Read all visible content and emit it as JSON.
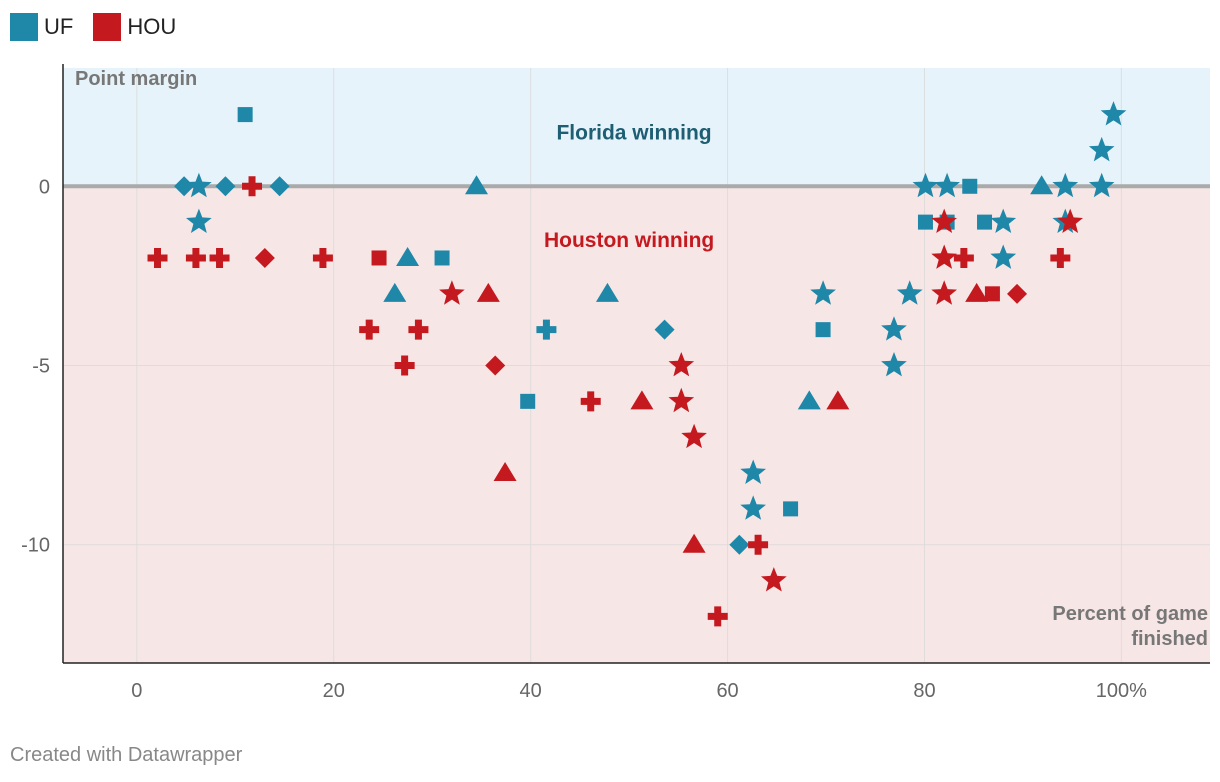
{
  "footer": "Created with Datawrapper",
  "chart_data": {
    "type": "scatter",
    "y_axis_title": "Point margin",
    "x_axis_title": [
      "Percent of game",
      "finished"
    ],
    "xlim": [
      -7.5,
      109
    ],
    "ylim": [
      -13.3,
      3.3
    ],
    "x_ticks": [
      {
        "value": 0,
        "label": "0"
      },
      {
        "value": 20,
        "label": "20"
      },
      {
        "value": 40,
        "label": "40"
      },
      {
        "value": 60,
        "label": "60"
      },
      {
        "value": 80,
        "label": "80"
      },
      {
        "value": 100,
        "label": "100%"
      }
    ],
    "y_ticks": [
      {
        "value": 0,
        "label": "0"
      },
      {
        "value": -5,
        "label": "-5"
      },
      {
        "value": -10,
        "label": "-10"
      }
    ],
    "regions": [
      {
        "label": "Florida winning",
        "from": 0,
        "to": 3.3,
        "fill": "#e6f3fa",
        "text_color": "#1d5e73",
        "label_x": 50.5,
        "label_y": 1.5
      },
      {
        "label": "Houston winning",
        "from": -13.3,
        "to": 0,
        "fill": "#f7e6e6",
        "text_color": "#c4191f",
        "label_x": 50,
        "label_y": -1.5
      }
    ],
    "series": [
      {
        "name": "UF",
        "color": "#1f87a8",
        "points": [
          {
            "x": 11,
            "y": 2,
            "shape": "square"
          },
          {
            "x": 4.8,
            "y": 0,
            "shape": "diamond"
          },
          {
            "x": 6.3,
            "y": 0,
            "shape": "star"
          },
          {
            "x": 9,
            "y": 0,
            "shape": "diamond"
          },
          {
            "x": 14.5,
            "y": 0,
            "shape": "diamond"
          },
          {
            "x": 6.3,
            "y": -1,
            "shape": "star"
          },
          {
            "x": 34.5,
            "y": 0,
            "shape": "triangle"
          },
          {
            "x": 27.5,
            "y": -2,
            "shape": "triangle"
          },
          {
            "x": 31,
            "y": -2,
            "shape": "square"
          },
          {
            "x": 26.2,
            "y": -3,
            "shape": "triangle"
          },
          {
            "x": 47.8,
            "y": -3,
            "shape": "triangle"
          },
          {
            "x": 41.6,
            "y": -4,
            "shape": "plus"
          },
          {
            "x": 53.6,
            "y": -4,
            "shape": "diamond"
          },
          {
            "x": 39.7,
            "y": -6,
            "shape": "square"
          },
          {
            "x": 62.6,
            "y": -8,
            "shape": "star"
          },
          {
            "x": 62.6,
            "y": -9,
            "shape": "star"
          },
          {
            "x": 66.4,
            "y": -9,
            "shape": "square"
          },
          {
            "x": 61.2,
            "y": -10,
            "shape": "diamond"
          },
          {
            "x": 68.3,
            "y": -6,
            "shape": "triangle"
          },
          {
            "x": 69.7,
            "y": -3,
            "shape": "star"
          },
          {
            "x": 69.7,
            "y": -4,
            "shape": "square"
          },
          {
            "x": 76.9,
            "y": -4,
            "shape": "star"
          },
          {
            "x": 76.9,
            "y": -5,
            "shape": "star"
          },
          {
            "x": 78.5,
            "y": -3,
            "shape": "star"
          },
          {
            "x": 80.1,
            "y": 0,
            "shape": "star"
          },
          {
            "x": 82.3,
            "y": 0,
            "shape": "star"
          },
          {
            "x": 84.6,
            "y": 0,
            "shape": "square"
          },
          {
            "x": 80.1,
            "y": -1,
            "shape": "square"
          },
          {
            "x": 82.3,
            "y": -1,
            "shape": "square"
          },
          {
            "x": 86.1,
            "y": -1,
            "shape": "square"
          },
          {
            "x": 88,
            "y": -1,
            "shape": "star"
          },
          {
            "x": 88,
            "y": -2,
            "shape": "star"
          },
          {
            "x": 91.9,
            "y": 0,
            "shape": "triangle"
          },
          {
            "x": 94.3,
            "y": 0,
            "shape": "star"
          },
          {
            "x": 94.3,
            "y": -1,
            "shape": "star"
          },
          {
            "x": 98,
            "y": 0,
            "shape": "star"
          },
          {
            "x": 98,
            "y": 1,
            "shape": "star"
          },
          {
            "x": 99.2,
            "y": 2,
            "shape": "star"
          }
        ]
      },
      {
        "name": "HOU",
        "color": "#c4191f",
        "points": [
          {
            "x": 11.7,
            "y": 0,
            "shape": "plus"
          },
          {
            "x": 2.1,
            "y": -2,
            "shape": "plus"
          },
          {
            "x": 6,
            "y": -2,
            "shape": "plus"
          },
          {
            "x": 8.4,
            "y": -2,
            "shape": "plus"
          },
          {
            "x": 13,
            "y": -2,
            "shape": "diamond"
          },
          {
            "x": 18.9,
            "y": -2,
            "shape": "plus"
          },
          {
            "x": 24.6,
            "y": -2,
            "shape": "square"
          },
          {
            "x": 23.6,
            "y": -4,
            "shape": "plus"
          },
          {
            "x": 28.6,
            "y": -4,
            "shape": "plus"
          },
          {
            "x": 27.2,
            "y": -5,
            "shape": "plus"
          },
          {
            "x": 32,
            "y": -3,
            "shape": "star"
          },
          {
            "x": 35.7,
            "y": -3,
            "shape": "triangle"
          },
          {
            "x": 36.4,
            "y": -5,
            "shape": "diamond"
          },
          {
            "x": 37.4,
            "y": -8,
            "shape": "triangle"
          },
          {
            "x": 46.1,
            "y": -6,
            "shape": "plus"
          },
          {
            "x": 51.3,
            "y": -6,
            "shape": "triangle"
          },
          {
            "x": 55.3,
            "y": -5,
            "shape": "star"
          },
          {
            "x": 55.3,
            "y": -6,
            "shape": "star"
          },
          {
            "x": 56.6,
            "y": -7,
            "shape": "star"
          },
          {
            "x": 56.6,
            "y": -10,
            "shape": "triangle"
          },
          {
            "x": 59,
            "y": -12,
            "shape": "plus"
          },
          {
            "x": 63.1,
            "y": -10,
            "shape": "plus"
          },
          {
            "x": 64.7,
            "y": -11,
            "shape": "star"
          },
          {
            "x": 71.2,
            "y": -6,
            "shape": "triangle"
          },
          {
            "x": 82,
            "y": -1,
            "shape": "star"
          },
          {
            "x": 82,
            "y": -2,
            "shape": "star"
          },
          {
            "x": 84,
            "y": -2,
            "shape": "plus"
          },
          {
            "x": 82,
            "y": -3,
            "shape": "star"
          },
          {
            "x": 85.3,
            "y": -3,
            "shape": "triangle"
          },
          {
            "x": 86.9,
            "y": -3,
            "shape": "square"
          },
          {
            "x": 89.4,
            "y": -3,
            "shape": "diamond"
          },
          {
            "x": 93.8,
            "y": -2,
            "shape": "plus"
          },
          {
            "x": 94.8,
            "y": -1,
            "shape": "star"
          }
        ]
      }
    ]
  }
}
